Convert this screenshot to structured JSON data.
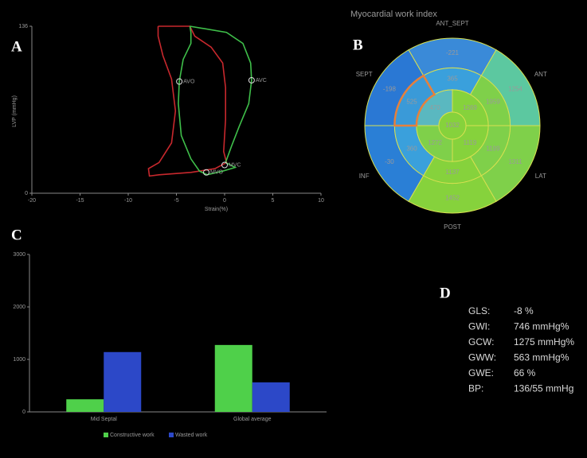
{
  "panel_labels": [
    "A",
    "B",
    "C",
    "D"
  ],
  "chart_data": [
    {
      "type": "line",
      "xlabel": "Strain(%)",
      "ylabel": "LVP (mmHg)",
      "xlim": [
        -20,
        10
      ],
      "xticks": [
        -20,
        -15,
        -10,
        -5,
        0,
        5,
        10
      ],
      "ylim": [
        0,
        136
      ],
      "yticks": [
        0,
        136
      ],
      "series": [
        {
          "color": "#c8282d",
          "x": [
            -6.9,
            -3.6,
            -3.1,
            -1.4,
            -0.2,
            0.1,
            0.1,
            -0.1,
            0.2,
            -1.0,
            -3.5,
            -6.8,
            -7.8,
            -7.9,
            -6.8,
            -5.5,
            -5.1,
            -5.5,
            -6.4,
            -6.9,
            -6.9
          ],
          "values": [
            136,
            136,
            128,
            119,
            106,
            86,
            60,
            34,
            25,
            20,
            17,
            15,
            14,
            20,
            25,
            41,
            67,
            93,
            112,
            128,
            136
          ]
        },
        {
          "color": "#3fbf4a",
          "x": [
            -3.6,
            0.2,
            1.9,
            2.7,
            2.8,
            2.5,
            1.5,
            0.7,
            0.1,
            1.1,
            -0.2,
            -1.8,
            -2.6,
            -3.5,
            -4.5,
            -4.8,
            -4.7,
            -4.3,
            -3.5,
            -3.5,
            -3.6
          ],
          "values": [
            136,
            131,
            122,
            106,
            92,
            73,
            54,
            38,
            25,
            21,
            18,
            15,
            18,
            28,
            47,
            73,
            91,
            109,
            122,
            131,
            136
          ]
        }
      ],
      "annotations": [
        {
          "text": "AVO",
          "x": -4.7,
          "y": 91
        },
        {
          "text": "AVC",
          "x": 2.8,
          "y": 92
        },
        {
          "text": "MVC",
          "x": 0,
          "y": 23
        },
        {
          "text": "MVO",
          "x": -1.9,
          "y": 17
        }
      ]
    },
    {
      "type": "bullseye",
      "title": "Myocardial work index",
      "sector_labels": [
        "ANT_SEPT",
        "ANT",
        "LAT",
        "POST",
        "INF",
        "SEPT"
      ],
      "values": [
        [
          -221,
          1254,
          1311,
          1452,
          -30,
          -198
        ],
        [
          365,
          1959,
          1199,
          1137,
          360,
          525
        ],
        [
          1269,
          1119,
          1272,
          470
        ],
        [
          1032
        ]
      ],
      "colors": [
        [
          "#3a8ad8",
          "#5cc8a0",
          "#7fd04a",
          "#86d23c",
          "#2a7fd6",
          "#2a78d4"
        ],
        [
          "#3aa0dc",
          "#7fd04a",
          "#7fd04a",
          "#86d23c",
          "#3aa0dc",
          "#3a9ad8"
        ],
        [
          "#86d23c",
          "#86d23c",
          "#7fd04a",
          "#5ab8c0"
        ],
        [
          "#86d23c"
        ]
      ],
      "highlight": {
        "ring": 1,
        "index": 5,
        "color": "#e8803a"
      }
    },
    {
      "type": "bar",
      "categories": [
        "Mid Septal",
        "Global average"
      ],
      "ylim": [
        0,
        3000
      ],
      "yticks": [
        0,
        1000,
        2000,
        3000
      ],
      "series": [
        {
          "name": "Constructive work",
          "color": "#4fd04a",
          "values": [
            240,
            1275
          ]
        },
        {
          "name": "Wasted work",
          "color": "#2c48c8",
          "values": [
            1140,
            563
          ]
        }
      ],
      "legend": "bottom"
    }
  ],
  "metrics": {
    "rows": [
      [
        "GLS:",
        "-8 %"
      ],
      [
        "GWI:",
        "746 mmHg%"
      ],
      [
        "GCW:",
        "1275 mmHg%"
      ],
      [
        "GWW:",
        "563 mmHg%"
      ],
      [
        "GWE:",
        "66 %"
      ],
      [
        "BP:",
        "136/55 mmHg"
      ]
    ]
  }
}
